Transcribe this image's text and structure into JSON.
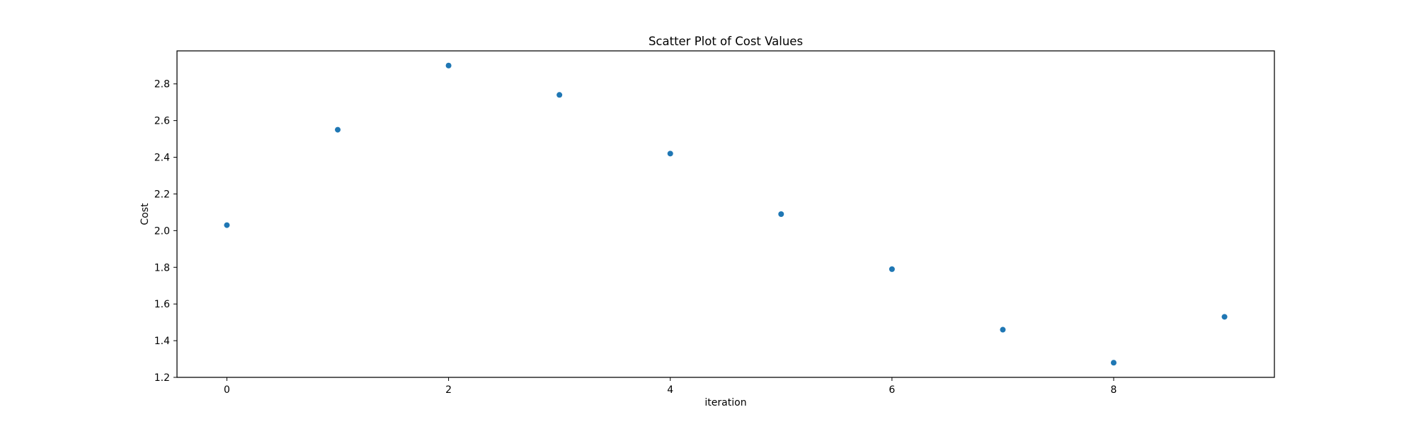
{
  "chart_data": {
    "type": "scatter",
    "title": "Scatter Plot of Cost Values",
    "xlabel": "iteration",
    "ylabel": "Cost",
    "x": [
      0,
      1,
      2,
      3,
      4,
      5,
      6,
      7,
      8,
      9
    ],
    "y": [
      2.03,
      2.55,
      2.9,
      2.74,
      2.42,
      2.09,
      1.79,
      1.46,
      1.28,
      1.53
    ],
    "xlim": [
      -0.45,
      9.45
    ],
    "ylim": [
      1.2,
      2.98
    ],
    "xticks": [
      0,
      2,
      4,
      6,
      8
    ],
    "xtick_labels": [
      "0",
      "2",
      "4",
      "6",
      "8"
    ],
    "yticks": [
      1.2,
      1.4,
      1.6,
      1.8,
      2.0,
      2.2,
      2.4,
      2.6,
      2.8
    ],
    "ytick_labels": [
      "1.2",
      "1.4",
      "1.6",
      "1.8",
      "2.0",
      "2.2",
      "2.4",
      "2.6",
      "2.8"
    ],
    "grid": false,
    "legend": "none",
    "marker_color": "#1f77b4"
  }
}
